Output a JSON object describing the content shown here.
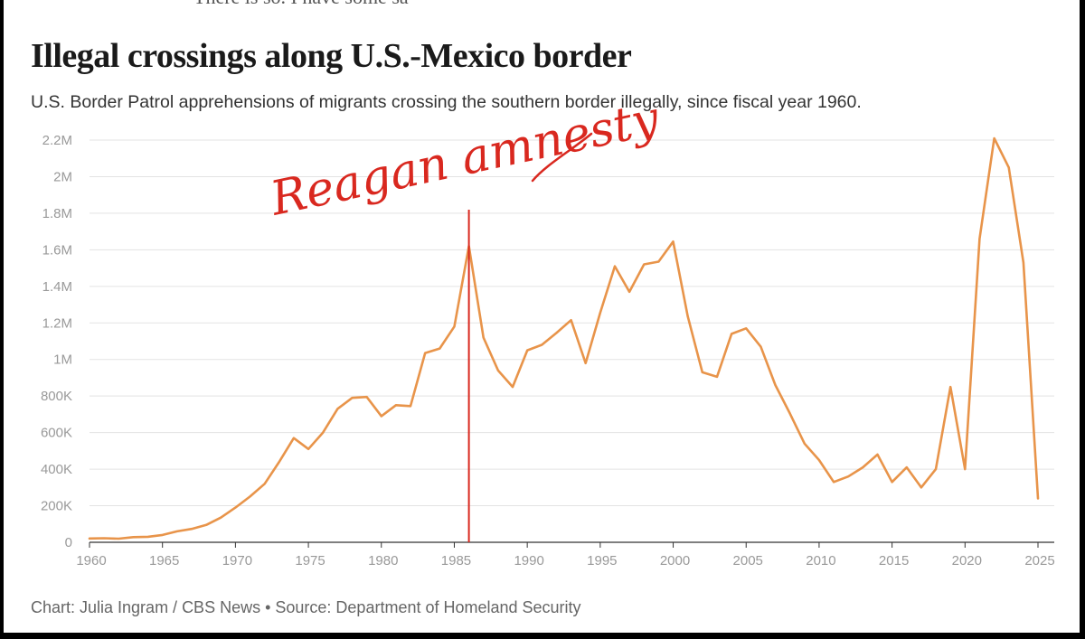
{
  "header": {
    "cut_text": "There is so. I have some sa",
    "title": "Illegal crossings along U.S.-Mexico border",
    "subtitle": "U.S. Border Patrol apprehensions of migrants crossing the southern border illegally, since fiscal year 1960."
  },
  "footer": {
    "credit": "Chart: Julia Ingram / CBS News • Source: Department of Homeland Security"
  },
  "annotation": {
    "text": "Reagan amnesty",
    "year": 1986,
    "color": "#d9281f"
  },
  "colors": {
    "line": "#e8944a",
    "grid": "#e3e3e3",
    "axis": "#333333",
    "tick": "#999999"
  },
  "chart_data": {
    "type": "line",
    "title": "Illegal crossings along U.S.-Mexico border",
    "xlabel": "",
    "ylabel": "",
    "xlim": [
      1960,
      2025
    ],
    "ylim": [
      0,
      2200000
    ],
    "grid": true,
    "x_ticks": [
      1960,
      1965,
      1970,
      1975,
      1980,
      1985,
      1990,
      1995,
      2000,
      2005,
      2010,
      2015,
      2020,
      2025
    ],
    "x_tick_labels": [
      "1960",
      "1965",
      "1970",
      "1975",
      "1980",
      "1985",
      "1990",
      "1995",
      "2000",
      "2005",
      "2010",
      "2015",
      "2020",
      "2025"
    ],
    "y_ticks": [
      0,
      200000,
      400000,
      600000,
      800000,
      1000000,
      1200000,
      1400000,
      1600000,
      1800000,
      2000000,
      2200000
    ],
    "y_tick_labels": [
      "0",
      "200K",
      "400K",
      "600K",
      "800K",
      "1M",
      "1.2M",
      "1.4M",
      "1.6M",
      "1.8M",
      "2M",
      "2.2M"
    ],
    "series": [
      {
        "name": "Apprehensions",
        "x": [
          1960,
          1961,
          1962,
          1963,
          1964,
          1965,
          1966,
          1967,
          1968,
          1969,
          1970,
          1971,
          1972,
          1973,
          1974,
          1975,
          1976,
          1977,
          1978,
          1979,
          1980,
          1981,
          1982,
          1983,
          1984,
          1985,
          1986,
          1987,
          1988,
          1989,
          1990,
          1991,
          1992,
          1993,
          1994,
          1995,
          1996,
          1997,
          1998,
          1999,
          2000,
          2001,
          2002,
          2003,
          2004,
          2005,
          2006,
          2007,
          2008,
          2009,
          2010,
          2011,
          2012,
          2013,
          2014,
          2015,
          2016,
          2017,
          2018,
          2019,
          2020,
          2021,
          2022,
          2023,
          2024,
          2025
        ],
        "values": [
          21000,
          22000,
          20000,
          28000,
          30000,
          40000,
          60000,
          73000,
          95000,
          135000,
          190000,
          250000,
          320000,
          440000,
          570000,
          510000,
          600000,
          730000,
          790000,
          795000,
          690000,
          750000,
          745000,
          1035000,
          1060000,
          1180000,
          1620000,
          1120000,
          940000,
          850000,
          1050000,
          1080000,
          1145000,
          1215000,
          980000,
          1255000,
          1510000,
          1370000,
          1520000,
          1535000,
          1645000,
          1235000,
          930000,
          905000,
          1140000,
          1170000,
          1070000,
          860000,
          705000,
          540000,
          450000,
          330000,
          360000,
          410000,
          480000,
          330000,
          410000,
          300000,
          400000,
          850000,
          400000,
          1660000,
          2210000,
          2050000,
          1530000,
          240000
        ]
      }
    ]
  }
}
